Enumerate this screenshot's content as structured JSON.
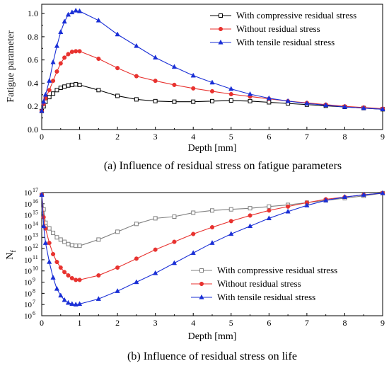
{
  "chart_data": [
    {
      "type": "line",
      "caption": "(a) Influence of residual stress on fatigue parameters",
      "xlabel": "Depth [mm]",
      "ylabel": "Fatigue parameter",
      "xlim": [
        0,
        9
      ],
      "ylim": [
        0,
        1.08
      ],
      "xticks": [
        "0",
        "1",
        "2",
        "3",
        "4",
        "5",
        "6",
        "7",
        "8",
        "9"
      ],
      "yticks": [
        "0.0",
        "0.2",
        "0.4",
        "0.6",
        "0.8",
        "1.0"
      ],
      "legend": "top-right",
      "series": [
        {
          "name": "With compressive residual stress",
          "color": "#000000",
          "marker": "square-open",
          "x": [
            0,
            0.05,
            0.1,
            0.2,
            0.3,
            0.4,
            0.5,
            0.6,
            0.7,
            0.8,
            0.9,
            1.0,
            1.5,
            2.0,
            2.5,
            3.0,
            3.5,
            4.0,
            4.5,
            5.0,
            5.5,
            6.0,
            6.5,
            7.0,
            7.5,
            8.0,
            8.5,
            9.0
          ],
          "y": [
            0.16,
            0.2,
            0.24,
            0.28,
            0.31,
            0.34,
            0.36,
            0.37,
            0.38,
            0.385,
            0.39,
            0.385,
            0.34,
            0.29,
            0.26,
            0.245,
            0.24,
            0.24,
            0.245,
            0.25,
            0.245,
            0.235,
            0.225,
            0.215,
            0.205,
            0.195,
            0.185,
            0.175
          ]
        },
        {
          "name": "Without residual stress",
          "color": "#e8322f",
          "marker": "circle",
          "x": [
            0,
            0.05,
            0.1,
            0.2,
            0.3,
            0.4,
            0.5,
            0.6,
            0.7,
            0.8,
            0.9,
            1.0,
            1.5,
            2.0,
            2.5,
            3.0,
            3.5,
            4.0,
            4.5,
            5.0,
            5.5,
            6.0,
            6.5,
            7.0,
            7.5,
            8.0,
            8.5,
            9.0
          ],
          "y": [
            0.16,
            0.22,
            0.27,
            0.34,
            0.42,
            0.5,
            0.57,
            0.62,
            0.65,
            0.67,
            0.675,
            0.675,
            0.61,
            0.53,
            0.46,
            0.42,
            0.385,
            0.355,
            0.33,
            0.305,
            0.285,
            0.265,
            0.245,
            0.23,
            0.215,
            0.2,
            0.19,
            0.18
          ]
        },
        {
          "name": "With tensile residual stress",
          "color": "#1a2fd6",
          "marker": "triangle",
          "x": [
            0,
            0.05,
            0.1,
            0.2,
            0.3,
            0.4,
            0.5,
            0.6,
            0.7,
            0.8,
            0.9,
            1.0,
            1.5,
            2.0,
            2.5,
            3.0,
            3.5,
            4.0,
            4.5,
            5.0,
            5.5,
            6.0,
            6.5,
            7.0,
            7.5,
            8.0,
            8.5,
            9.0
          ],
          "y": [
            0.16,
            0.24,
            0.3,
            0.42,
            0.58,
            0.72,
            0.84,
            0.93,
            0.99,
            1.01,
            1.025,
            1.02,
            0.94,
            0.82,
            0.72,
            0.62,
            0.54,
            0.465,
            0.405,
            0.35,
            0.305,
            0.27,
            0.245,
            0.225,
            0.21,
            0.195,
            0.185,
            0.175
          ]
        }
      ]
    },
    {
      "type": "line",
      "caption": "(b) Influence of residual stress on life",
      "xlabel": "Depth [mm]",
      "ylabel_base": "N",
      "ylabel_sub": "f",
      "yscale": "log",
      "xlim": [
        0,
        9
      ],
      "ylim_exp": [
        6,
        17
      ],
      "xticks": [
        "0",
        "1",
        "2",
        "3",
        "4",
        "5",
        "6",
        "7",
        "8",
        "9"
      ],
      "ytick_base": "10",
      "ytick_exps": [
        "6",
        "7",
        "8",
        "9",
        "10",
        "11",
        "12",
        "13",
        "14",
        "15",
        "16",
        "17"
      ],
      "legend": "bottom-right",
      "series": [
        {
          "name": "With compressive residual stress",
          "color": "#808080",
          "marker": "square-open",
          "x": [
            0,
            0.05,
            0.1,
            0.2,
            0.3,
            0.4,
            0.5,
            0.6,
            0.7,
            0.8,
            0.9,
            1.0,
            1.5,
            2.0,
            2.5,
            3.0,
            3.5,
            4.0,
            4.5,
            5.0,
            5.5,
            6.0,
            6.5,
            7.0,
            7.5,
            8.0,
            8.5,
            9.0
          ],
          "log10_y": [
            16.8,
            15.5,
            14.3,
            13.8,
            13.4,
            13.0,
            12.8,
            12.6,
            12.4,
            12.3,
            12.25,
            12.25,
            12.8,
            13.5,
            14.2,
            14.7,
            14.85,
            15.2,
            15.4,
            15.5,
            15.6,
            15.75,
            15.9,
            16.1,
            16.3,
            16.5,
            16.7,
            16.95
          ]
        },
        {
          "name": "Without residual stress",
          "color": "#e8322f",
          "marker": "circle",
          "x": [
            0,
            0.05,
            0.1,
            0.2,
            0.3,
            0.4,
            0.5,
            0.6,
            0.7,
            0.8,
            0.9,
            1.0,
            1.5,
            2.0,
            2.5,
            3.0,
            3.5,
            4.0,
            4.5,
            5.0,
            5.5,
            6.0,
            6.5,
            7.0,
            7.5,
            8.0,
            8.5,
            9.0
          ],
          "log10_y": [
            16.8,
            14.8,
            13.8,
            12.5,
            11.5,
            10.8,
            10.3,
            9.9,
            9.6,
            9.35,
            9.2,
            9.2,
            9.6,
            10.3,
            11.1,
            11.9,
            12.6,
            13.3,
            13.9,
            14.45,
            14.95,
            15.4,
            15.75,
            16.1,
            16.4,
            16.6,
            16.8,
            16.95
          ]
        },
        {
          "name": "With tensile residual stress",
          "color": "#1a2fd6",
          "marker": "triangle",
          "x": [
            0,
            0.05,
            0.1,
            0.2,
            0.3,
            0.4,
            0.5,
            0.6,
            0.7,
            0.8,
            0.9,
            1.0,
            1.5,
            2.0,
            2.5,
            3.0,
            3.5,
            4.0,
            4.5,
            5.0,
            5.5,
            6.0,
            6.5,
            7.0,
            7.5,
            8.0,
            8.5,
            9.0
          ],
          "log10_y": [
            16.8,
            14.0,
            12.5,
            10.8,
            9.4,
            8.4,
            7.8,
            7.4,
            7.15,
            7.05,
            7.0,
            7.05,
            7.5,
            8.2,
            9.0,
            9.8,
            10.7,
            11.6,
            12.5,
            13.3,
            14.0,
            14.7,
            15.3,
            15.85,
            16.3,
            16.6,
            16.8,
            16.95
          ]
        }
      ]
    }
  ]
}
